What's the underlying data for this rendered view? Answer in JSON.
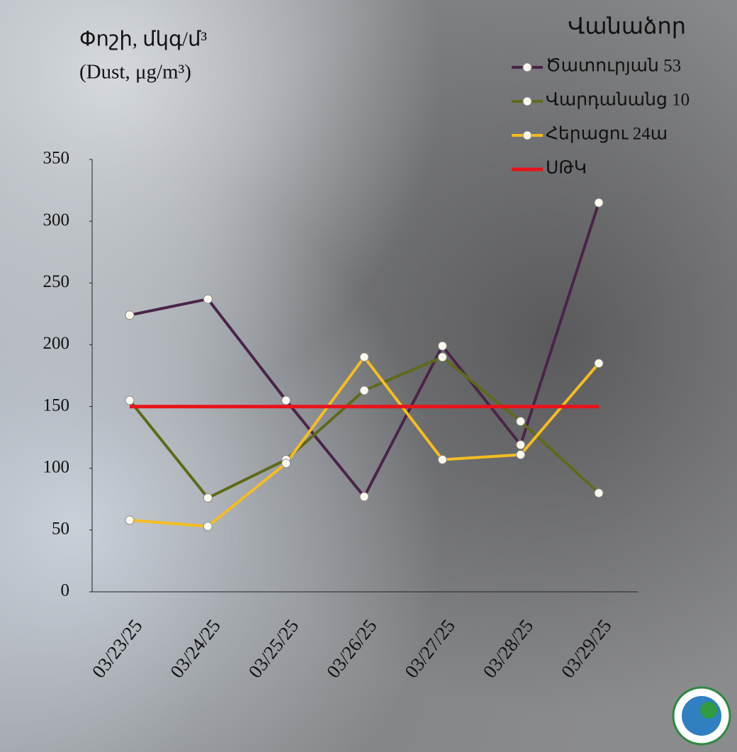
{
  "chart_data": {
    "type": "line",
    "title": "Փոշի, մկգ/մ³",
    "subtitle": "(Dust, μg/m³)",
    "legend_title": "Վանաձոր",
    "categories": [
      "03/23/25",
      "03/24/25",
      "03/25/25",
      "03/26/25",
      "03/27/25",
      "03/28/25",
      "03/29/25"
    ],
    "series": [
      {
        "name": "Ծատուրյան 53",
        "color": "#4a2448",
        "markers": true,
        "values": [
          224,
          237,
          155,
          77,
          199,
          119,
          315
        ]
      },
      {
        "name": "Վարդանանց 10",
        "color": "#5e6a1a",
        "markers": true,
        "values": [
          155,
          76,
          107,
          163,
          190,
          138,
          80
        ]
      },
      {
        "name": "Հերացու 24ա",
        "color": "#f5bd1f",
        "markers": true,
        "values": [
          58,
          53,
          104,
          190,
          107,
          111,
          185
        ]
      },
      {
        "name": "ՍԹԿ",
        "color": "#e8141a",
        "markers": false,
        "values": [
          150,
          150,
          150,
          150,
          150,
          150,
          150
        ]
      }
    ],
    "ylim": [
      0,
      350
    ],
    "yticks": [
      0,
      50,
      100,
      150,
      200,
      250,
      300,
      350
    ],
    "legend": "top-right"
  }
}
